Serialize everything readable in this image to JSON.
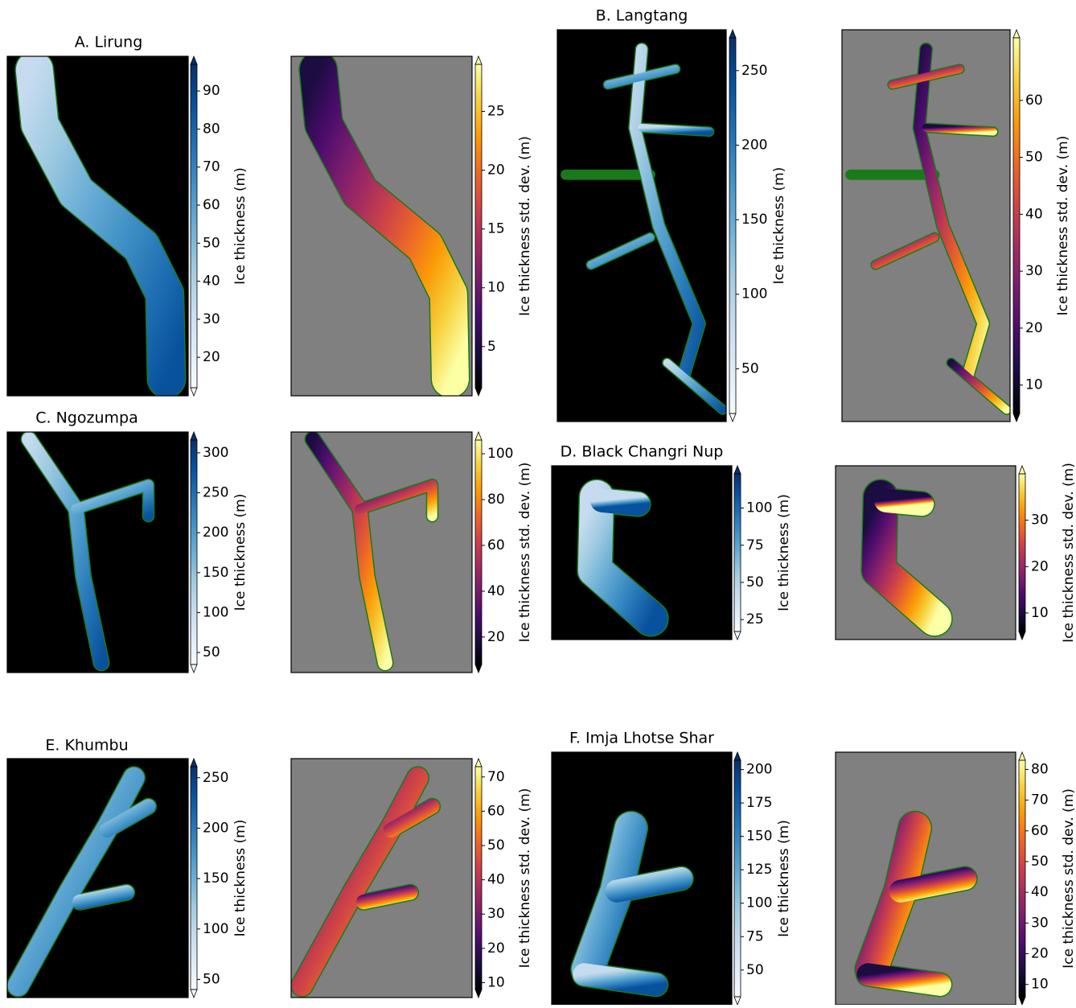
{
  "panels": [
    {
      "title": "A. Lirung",
      "maps": [
        {
          "colormap": "Blues",
          "colorbar": {
            "label": "Ice thickness (m)",
            "lim": [
              12,
              97
            ],
            "ticks": [
              20,
              30,
              40,
              50,
              60,
              70,
              80,
              90
            ]
          }
        },
        {
          "colormap": "inferno",
          "colorbar": {
            "label": "Ice thickness std. dev. (m)",
            "lim": [
              1.5,
              29
            ],
            "ticks": [
              5,
              10,
              15,
              20,
              25
            ]
          }
        }
      ]
    },
    {
      "title": "B. Langtang",
      "maps": [
        {
          "colormap": "Blues",
          "colorbar": {
            "label": "Ice thickness (m)",
            "lim": [
              20,
              272
            ],
            "ticks": [
              50,
              100,
              150,
              200,
              250
            ]
          }
        },
        {
          "colormap": "inferno",
          "colorbar": {
            "label": "Ice thickness std. dev. (m)",
            "lim": [
              5,
              71
            ],
            "ticks": [
              10,
              20,
              30,
              40,
              50,
              60
            ]
          }
        }
      ]
    },
    {
      "title": "C. Ngozumpa",
      "maps": [
        {
          "colormap": "Blues",
          "colorbar": {
            "label": "Ice thickness (m)",
            "lim": [
              35,
              316
            ],
            "ticks": [
              50,
              100,
              150,
              200,
              250,
              300
            ]
          }
        },
        {
          "colormap": "inferno",
          "colorbar": {
            "label": "Ice thickness std. dev. (m)",
            "lim": [
              8,
              106
            ],
            "ticks": [
              20,
              40,
              60,
              80,
              100
            ]
          }
        }
      ]
    },
    {
      "title": "D. Black Changri Nup",
      "maps": [
        {
          "colormap": "Blues",
          "colorbar": {
            "label": "Ice thickness (m)",
            "lim": [
              17,
              123
            ],
            "ticks": [
              25,
              50,
              75,
              100
            ]
          }
        },
        {
          "colormap": "inferno",
          "colorbar": {
            "label": "Ice thickness std. dev. (m)",
            "lim": [
              6,
              40
            ],
            "ticks": [
              10,
              20,
              30
            ]
          }
        }
      ]
    },
    {
      "title": "E. Khumbu",
      "maps": [
        {
          "colormap": "Blues",
          "colorbar": {
            "label": "Ice thickness (m)",
            "lim": [
              40,
              261
            ],
            "ticks": [
              50,
              100,
              150,
              200,
              250
            ]
          }
        },
        {
          "colormap": "inferno",
          "colorbar": {
            "label": "Ice thickness std. dev. (m)",
            "lim": [
              8,
              73
            ],
            "ticks": [
              10,
              20,
              30,
              40,
              50,
              60,
              70
            ]
          }
        }
      ]
    },
    {
      "title": "F. Imja Lhotse Shar",
      "maps": [
        {
          "colormap": "Blues",
          "colorbar": {
            "label": "Ice thickness (m)",
            "lim": [
              30,
              207
            ],
            "ticks": [
              50,
              75,
              100,
              125,
              150,
              175,
              200
            ]
          }
        },
        {
          "colormap": "inferno",
          "colorbar": {
            "label": "Ice thickness std. dev. (m)",
            "lim": [
              6,
              83
            ],
            "ticks": [
              10,
              20,
              30,
              40,
              50,
              60,
              70,
              80
            ]
          }
        }
      ]
    }
  ]
}
